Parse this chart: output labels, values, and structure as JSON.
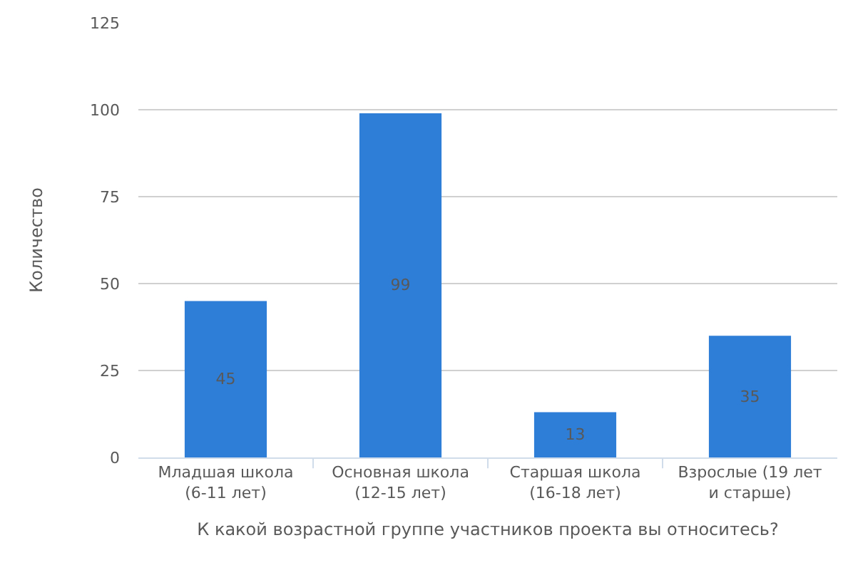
{
  "chart_data": {
    "type": "bar",
    "xlabel": "К какой возрастной группе участников проекта вы относитесь?",
    "ylabel": "Количество",
    "categories": [
      "Младшая школа\n(6-11 лет)",
      "Основная школа\n(12-15 лет)",
      "Старшая школа\n(16-18 лет)",
      "Взрослые (19 лет\nи старше)"
    ],
    "values": [
      45,
      99,
      13,
      35
    ],
    "color": "#2e7dd7",
    "ylim": [
      0,
      125
    ],
    "yticks": [
      0,
      25,
      50,
      75,
      100,
      125
    ],
    "grid": "y",
    "data_labels": true
  }
}
